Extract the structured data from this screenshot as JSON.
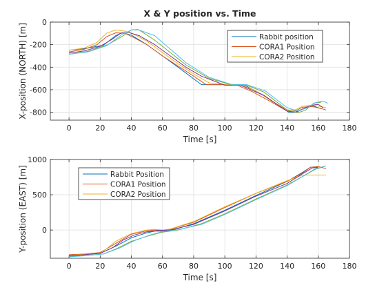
{
  "chart_data": [
    {
      "type": "line",
      "title": "X & Y position vs. Time",
      "xlabel": "Time [s]",
      "ylabel": "X-position (NORTH) [m]",
      "xlim": [
        -12,
        180
      ],
      "ylim": [
        -870,
        0
      ],
      "xticks": [
        "0",
        "20",
        "40",
        "60",
        "80",
        "100",
        "120",
        "140",
        "160",
        "180"
      ],
      "yticks": [
        "0",
        "-200",
        "-400",
        "-600",
        "-800"
      ],
      "grid": true,
      "legend_position": "top-right",
      "legend": [
        "Rabbit position",
        "CORA1 Position",
        "CORA2 Position"
      ],
      "series": [
        {
          "name": "Rabbit position",
          "color": "#0072BD",
          "x": [
            0,
            10,
            22,
            30,
            34,
            40,
            50,
            60,
            70,
            85,
            100,
            112,
            125,
            141,
            146,
            152,
            156,
            162
          ],
          "y": [
            -250,
            -235,
            -205,
            -120,
            -95,
            -115,
            -200,
            -300,
            -400,
            -555,
            -555,
            -555,
            -650,
            -800,
            -800,
            -760,
            -740,
            -770
          ]
        },
        {
          "name": "CORA1 Position",
          "color": "#D95319",
          "x": [
            0,
            10,
            18,
            24,
            30,
            36,
            42,
            50,
            60,
            70,
            80,
            88,
            100,
            108,
            118,
            130,
            140,
            145,
            150,
            156,
            160,
            165
          ],
          "y": [
            -265,
            -240,
            -200,
            -130,
            -95,
            -100,
            -140,
            -200,
            -300,
            -390,
            -480,
            -555,
            -555,
            -560,
            -620,
            -710,
            -790,
            -790,
            -755,
            -750,
            -760,
            -780
          ]
        },
        {
          "name": "CORA2 Position",
          "color": "#EDB120",
          "x": [
            0,
            10,
            18,
            24,
            30,
            36,
            42,
            50,
            60,
            70,
            80,
            90,
            102,
            110,
            120,
            130,
            140,
            145,
            150,
            155,
            160,
            165
          ],
          "y": [
            -250,
            -230,
            -180,
            -100,
            -70,
            -80,
            -110,
            -170,
            -270,
            -370,
            -460,
            -540,
            -555,
            -555,
            -610,
            -700,
            -780,
            -780,
            -745,
            -740,
            -745,
            -760
          ]
        },
        {
          "name": "",
          "color": "#7E2F8E",
          "x": [
            0,
            10,
            20,
            28,
            33,
            38,
            45,
            55,
            65,
            75,
            85,
            100,
            110,
            125,
            140,
            145,
            150,
            155,
            160,
            163
          ],
          "y": [
            -275,
            -255,
            -215,
            -150,
            -100,
            -90,
            -120,
            -200,
            -300,
            -400,
            -480,
            -560,
            -560,
            -650,
            -790,
            -800,
            -770,
            -740,
            -730,
            -760
          ]
        },
        {
          "name": "",
          "color": "#77AC30",
          "x": [
            0,
            12,
            25,
            35,
            40,
            45,
            55,
            65,
            75,
            90,
            104,
            114,
            125,
            140,
            147,
            152,
            157,
            162
          ],
          "y": [
            -285,
            -260,
            -200,
            -120,
            -70,
            -70,
            -160,
            -270,
            -380,
            -500,
            -555,
            -560,
            -620,
            -780,
            -805,
            -780,
            -720,
            -710
          ]
        },
        {
          "name": "",
          "color": "#4DBEEE",
          "x": [
            0,
            12,
            24,
            34,
            40,
            44,
            55,
            65,
            75,
            90,
            104,
            114,
            126,
            140,
            147,
            153,
            158,
            163,
            166
          ],
          "y": [
            -285,
            -265,
            -210,
            -110,
            -70,
            -65,
            -120,
            -240,
            -360,
            -490,
            -552,
            -555,
            -610,
            -760,
            -790,
            -760,
            -715,
            -700,
            -720
          ]
        }
      ]
    },
    {
      "type": "line",
      "title": "",
      "xlabel": "Time [s]",
      "ylabel": "Y-position (EAST) [m]",
      "xlim": [
        -12,
        180
      ],
      "ylim": [
        -400,
        1000
      ],
      "xticks": [
        "0",
        "20",
        "40",
        "60",
        "80",
        "100",
        "120",
        "140",
        "160",
        "180"
      ],
      "yticks": [
        "1000",
        "500",
        "0"
      ],
      "grid": true,
      "legend_position": "top-left",
      "legend": [
        "Rabbit Position",
        "CORA1 Position",
        "CORA2 Position"
      ],
      "series": [
        {
          "name": "Rabbit Position",
          "color": "#0072BD",
          "x": [
            0,
            10,
            20,
            30,
            40,
            50,
            55,
            60,
            65,
            80,
            100,
            120,
            140,
            150,
            155,
            160
          ],
          "y": [
            -355,
            -345,
            -330,
            -230,
            -110,
            -40,
            -15,
            -15,
            -10,
            90,
            280,
            490,
            690,
            820,
            890,
            900
          ]
        },
        {
          "name": "CORA1 Position",
          "color": "#D95319",
          "x": [
            0,
            10,
            20,
            30,
            40,
            50,
            55,
            60,
            65,
            80,
            100,
            120,
            140,
            150,
            155,
            160,
            165
          ],
          "y": [
            -350,
            -340,
            -320,
            -190,
            -60,
            -10,
            0,
            -5,
            10,
            110,
            320,
            520,
            690,
            810,
            890,
            900,
            870
          ]
        },
        {
          "name": "CORA2 Position",
          "color": "#EDB120",
          "x": [
            0,
            10,
            20,
            25,
            30,
            40,
            50,
            55,
            60,
            65,
            80,
            100,
            120,
            140,
            150,
            152,
            165
          ],
          "y": [
            -360,
            -345,
            -330,
            -250,
            -160,
            -50,
            0,
            10,
            0,
            15,
            120,
            330,
            520,
            700,
            780,
            780,
            780
          ]
        },
        {
          "name": "",
          "color": "#7E2F8E",
          "x": [
            0,
            10,
            20,
            28,
            35,
            42,
            50,
            58,
            65,
            80,
            100,
            120,
            140,
            150,
            156,
            160
          ],
          "y": [
            -365,
            -350,
            -330,
            -250,
            -140,
            -70,
            -25,
            -5,
            0,
            80,
            270,
            480,
            660,
            800,
            880,
            890
          ]
        },
        {
          "name": "",
          "color": "#77AC30",
          "x": [
            0,
            10,
            22,
            30,
            40,
            50,
            60,
            70,
            85,
            100,
            120,
            140,
            150,
            158,
            164
          ],
          "y": [
            -375,
            -360,
            -340,
            -270,
            -160,
            -90,
            -30,
            0,
            90,
            230,
            440,
            640,
            760,
            860,
            900
          ]
        },
        {
          "name": "",
          "color": "#4DBEEE",
          "x": [
            0,
            10,
            22,
            32,
            42,
            52,
            60,
            70,
            85,
            100,
            120,
            140,
            150,
            158,
            165
          ],
          "y": [
            -380,
            -365,
            -340,
            -260,
            -150,
            -70,
            -20,
            5,
            80,
            220,
            430,
            630,
            760,
            870,
            910
          ]
        }
      ]
    }
  ]
}
